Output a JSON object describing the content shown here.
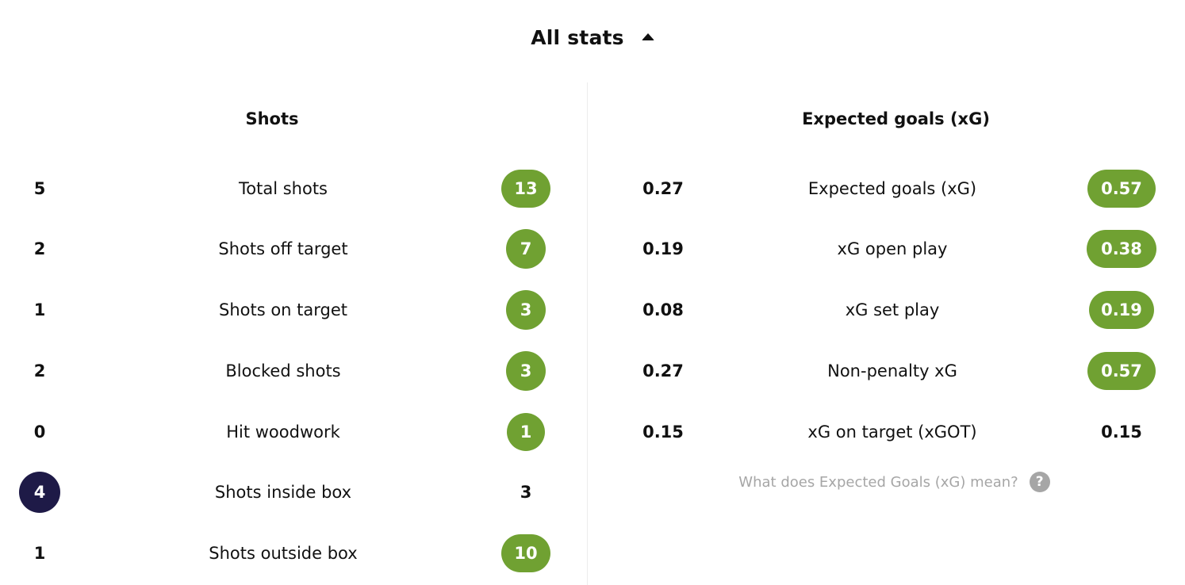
{
  "header": {
    "title": "All stats"
  },
  "shots": {
    "title": "Shots",
    "rows": [
      {
        "home": "5",
        "label": "Total shots",
        "away": "13",
        "away_style": "green"
      },
      {
        "home": "2",
        "label": "Shots off target",
        "away": "7",
        "away_style": "green"
      },
      {
        "home": "1",
        "label": "Shots on target",
        "away": "3",
        "away_style": "green"
      },
      {
        "home": "2",
        "label": "Blocked shots",
        "away": "3",
        "away_style": "green"
      },
      {
        "home": "0",
        "label": "Hit woodwork",
        "away": "1",
        "away_style": "green"
      },
      {
        "home": "4",
        "label": "Shots inside box",
        "away": "3",
        "away_style": "plain",
        "home_style": "navy"
      },
      {
        "home": "1",
        "label": "Shots outside box",
        "away": "10",
        "away_style": "green"
      }
    ]
  },
  "xg": {
    "title": "Expected goals (xG)",
    "rows": [
      {
        "home": "0.27",
        "label": "Expected goals (xG)",
        "away": "0.57",
        "away_style": "green"
      },
      {
        "home": "0.19",
        "label": "xG open play",
        "away": "0.38",
        "away_style": "green"
      },
      {
        "home": "0.08",
        "label": "xG set play",
        "away": "0.19",
        "away_style": "green"
      },
      {
        "home": "0.27",
        "label": "Non-penalty xG",
        "away": "0.57",
        "away_style": "green"
      },
      {
        "home": "0.15",
        "label": "xG on target (xGOT)",
        "away": "0.15",
        "away_style": "plain"
      }
    ],
    "help_text": "What does Expected Goals (xG) mean?",
    "help_icon": "question-mark-icon",
    "help_glyph": "?"
  },
  "colors": {
    "highlight_green": "#70a132",
    "highlight_navy": "#1e1a47",
    "muted_text": "#a6a6a6"
  }
}
